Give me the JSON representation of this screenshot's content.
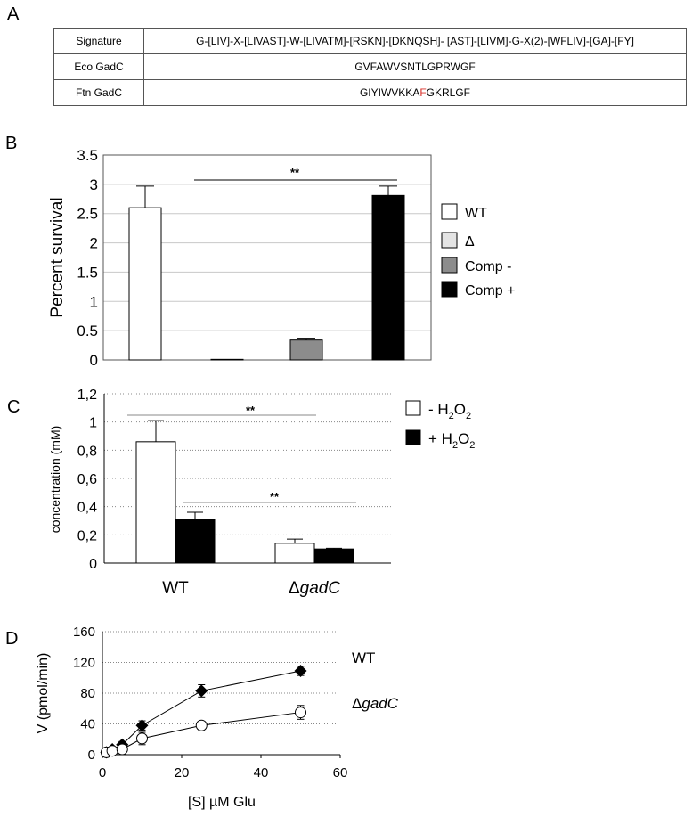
{
  "panel_labels": {
    "a": "A",
    "b": "B",
    "c": "C",
    "d": "D"
  },
  "table": {
    "rows": [
      {
        "label": "Signature",
        "value": "G-[LIV]-X-[LIVAST]-W-[LIVATM]-[RSKN]-[DKNQSH]- [AST]-[LIVM]-G-X(2)-[WFLIV]-[GA]-[FY]"
      },
      {
        "label": "Eco GadC",
        "value": "GVFAWVSNTLGPRWGF"
      },
      {
        "label": "Ftn GadC",
        "value_pre": "GIYIWVKKA",
        "value_highlight": "F",
        "value_post": "GKRLGF"
      }
    ],
    "highlight_color": "#d9302a"
  },
  "chart_data": [
    {
      "panel": "B",
      "type": "bar",
      "ylabel": "Percent survival",
      "ylim": [
        0,
        3.5
      ],
      "yticks": [
        "0",
        "0.5",
        "1",
        "1.5",
        "2",
        "2.5",
        "3",
        "3.5"
      ],
      "grid": true,
      "categories": [
        "WT",
        "Δ",
        "Comp -",
        "Comp +"
      ],
      "values": [
        2.6,
        0.01,
        0.34,
        2.81
      ],
      "errors": [
        0.37,
        0.0,
        0.03,
        0.16
      ],
      "colors": [
        "#ffffff",
        "#e4e4e4",
        "#8c8c8c",
        "#000000"
      ],
      "significance": "**",
      "legend": {
        "position": "right",
        "entries": [
          "WT",
          "Δ",
          "Comp -",
          "Comp +"
        ]
      }
    },
    {
      "panel": "C",
      "type": "bar",
      "ylabel": "concentration (mM)",
      "ylim": [
        0,
        1.2
      ],
      "yticks": [
        "0",
        "0,2",
        "0,4",
        "0,6",
        "0,8",
        "1",
        "1,2"
      ],
      "grid": true,
      "categories": [
        "WT",
        "ΔgadC"
      ],
      "series": [
        {
          "name_pre": "- H",
          "name_sub": "2",
          "name_mid": "O",
          "name_sub2": "2",
          "values": [
            0.86,
            0.14
          ],
          "errors": [
            0.15,
            0.03
          ],
          "color": "#ffffff"
        },
        {
          "name_pre": "+ H",
          "name_sub": "2",
          "name_mid": "O",
          "name_sub2": "2",
          "values": [
            0.31,
            0.1
          ],
          "errors": [
            0.05,
            0.005
          ],
          "color": "#000000"
        }
      ],
      "significance": [
        "**",
        "**"
      ],
      "legend": {
        "position": "right"
      }
    },
    {
      "panel": "D",
      "type": "line",
      "xlabel": "[S] µM Glu",
      "ylabel": "V (pmol/min)",
      "xlim": [
        0,
        60
      ],
      "ylim": [
        0,
        160
      ],
      "xticks": [
        "0",
        "20",
        "40",
        "60"
      ],
      "yticks": [
        "0",
        "40",
        "80",
        "120",
        "160"
      ],
      "grid": true,
      "series": [
        {
          "name": "WT",
          "marker": "diamond",
          "x": [
            1,
            2.5,
            5,
            10,
            25,
            50
          ],
          "y": [
            3,
            7,
            13,
            38,
            83,
            109
          ],
          "errors": [
            2,
            2,
            4,
            6,
            8,
            6
          ]
        },
        {
          "name_pre": "Δ",
          "name_italic": "gadC",
          "marker": "circle",
          "x": [
            1,
            2.5,
            5,
            10,
            25,
            50
          ],
          "y": [
            3,
            5,
            7,
            21,
            38,
            55
          ],
          "errors": [
            2,
            2,
            3,
            8,
            3,
            9
          ]
        }
      ]
    }
  ]
}
